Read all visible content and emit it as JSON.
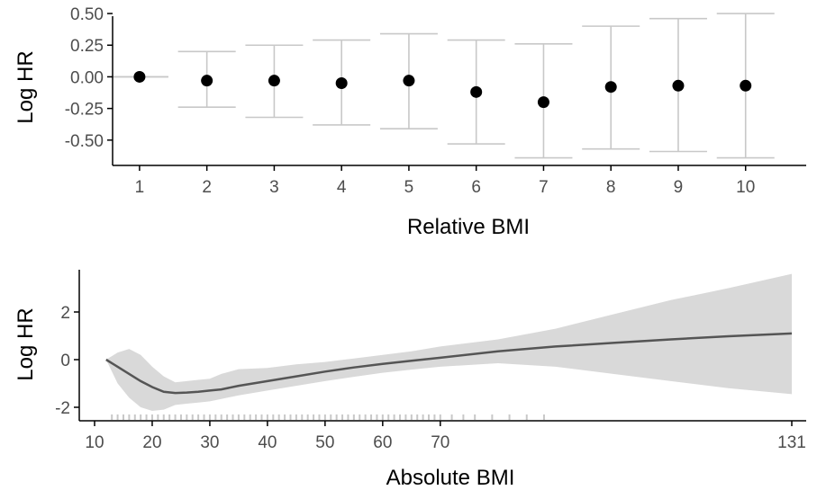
{
  "chart_data": [
    {
      "type": "scatter",
      "panel": "top",
      "xlabel": "Relative BMI",
      "ylabel": "Log HR",
      "x": [
        1,
        2,
        3,
        4,
        5,
        6,
        7,
        8,
        9,
        10
      ],
      "y": [
        0.0,
        -0.03,
        -0.03,
        -0.05,
        -0.03,
        -0.12,
        -0.2,
        -0.08,
        -0.07,
        -0.07
      ],
      "ci_lower": [
        0.0,
        -0.24,
        -0.32,
        -0.38,
        -0.41,
        -0.53,
        -0.64,
        -0.57,
        -0.59,
        -0.64
      ],
      "ci_upper": [
        0.0,
        0.2,
        0.25,
        0.29,
        0.34,
        0.29,
        0.26,
        0.4,
        0.46,
        0.5
      ],
      "xticks": [
        "1",
        "2",
        "3",
        "4",
        "5",
        "6",
        "7",
        "8",
        "9",
        "10"
      ],
      "yticks": [
        "0.50",
        "0.25",
        "0.00",
        "-0.25",
        "-0.50"
      ],
      "ytick_values": [
        0.5,
        0.25,
        0.0,
        -0.25,
        -0.5
      ],
      "xlim": [
        0.6,
        10.9
      ],
      "ylim": [
        -0.7,
        0.55
      ],
      "grid": false,
      "colors": {
        "point": "#000000",
        "errorbar": "#c8c8c8",
        "axis": "#000000"
      }
    },
    {
      "type": "line",
      "panel": "bottom",
      "xlabel": "Absolute BMI",
      "ylabel": "Log HR",
      "xticks": [
        "10",
        "20",
        "30",
        "40",
        "50",
        "60",
        "70",
        "131"
      ],
      "xtick_values": [
        10,
        20,
        30,
        40,
        50,
        60,
        70,
        131
      ],
      "yticks": [
        "2",
        "0",
        "-2"
      ],
      "ytick_values": [
        2,
        0,
        -2
      ],
      "xlim": [
        5,
        133
      ],
      "ylim": [
        -2.5,
        3.8
      ],
      "x": [
        12,
        14,
        16,
        18,
        20,
        22,
        24,
        26,
        28,
        30,
        32,
        35,
        40,
        45,
        50,
        55,
        60,
        65,
        70,
        80,
        90,
        100,
        110,
        120,
        131
      ],
      "y": [
        0.0,
        -0.3,
        -0.6,
        -0.9,
        -1.15,
        -1.35,
        -1.4,
        -1.38,
        -1.35,
        -1.3,
        -1.25,
        -1.1,
        -0.9,
        -0.7,
        -0.5,
        -0.33,
        -0.18,
        -0.05,
        0.08,
        0.35,
        0.55,
        0.7,
        0.85,
        0.98,
        1.1
      ],
      "ci_lower": [
        0.0,
        -1.0,
        -1.6,
        -2.0,
        -2.15,
        -2.1,
        -1.9,
        -1.85,
        -1.8,
        -1.75,
        -1.65,
        -1.5,
        -1.3,
        -1.1,
        -0.9,
        -0.72,
        -0.55,
        -0.42,
        -0.3,
        -0.15,
        -0.3,
        -0.6,
        -0.9,
        -1.2,
        -1.45
      ],
      "ci_upper": [
        0.0,
        0.3,
        0.45,
        0.2,
        -0.3,
        -0.7,
        -0.95,
        -0.9,
        -0.85,
        -0.8,
        -0.6,
        -0.4,
        -0.35,
        -0.2,
        -0.1,
        0.05,
        0.2,
        0.35,
        0.55,
        0.85,
        1.3,
        1.9,
        2.5,
        3.0,
        3.6
      ],
      "rug_x": [
        13,
        14,
        15,
        16,
        17,
        18,
        19,
        20,
        21,
        22,
        23,
        24,
        25,
        26,
        27,
        28,
        29,
        30,
        31,
        32,
        33,
        34,
        35,
        36,
        37,
        38,
        39,
        40,
        41,
        42,
        43,
        44,
        45,
        46,
        47,
        48,
        49,
        50,
        51,
        52,
        53,
        54,
        55,
        56,
        57,
        58,
        59,
        60,
        61,
        62,
        63,
        64,
        65,
        66,
        67,
        68,
        69,
        70,
        72,
        74,
        76,
        79,
        82,
        85,
        88
      ],
      "grid": false,
      "colors": {
        "line": "#555555",
        "band": "#d9d9d9",
        "rug": "#c8c8c8",
        "axis": "#000000"
      }
    }
  ]
}
